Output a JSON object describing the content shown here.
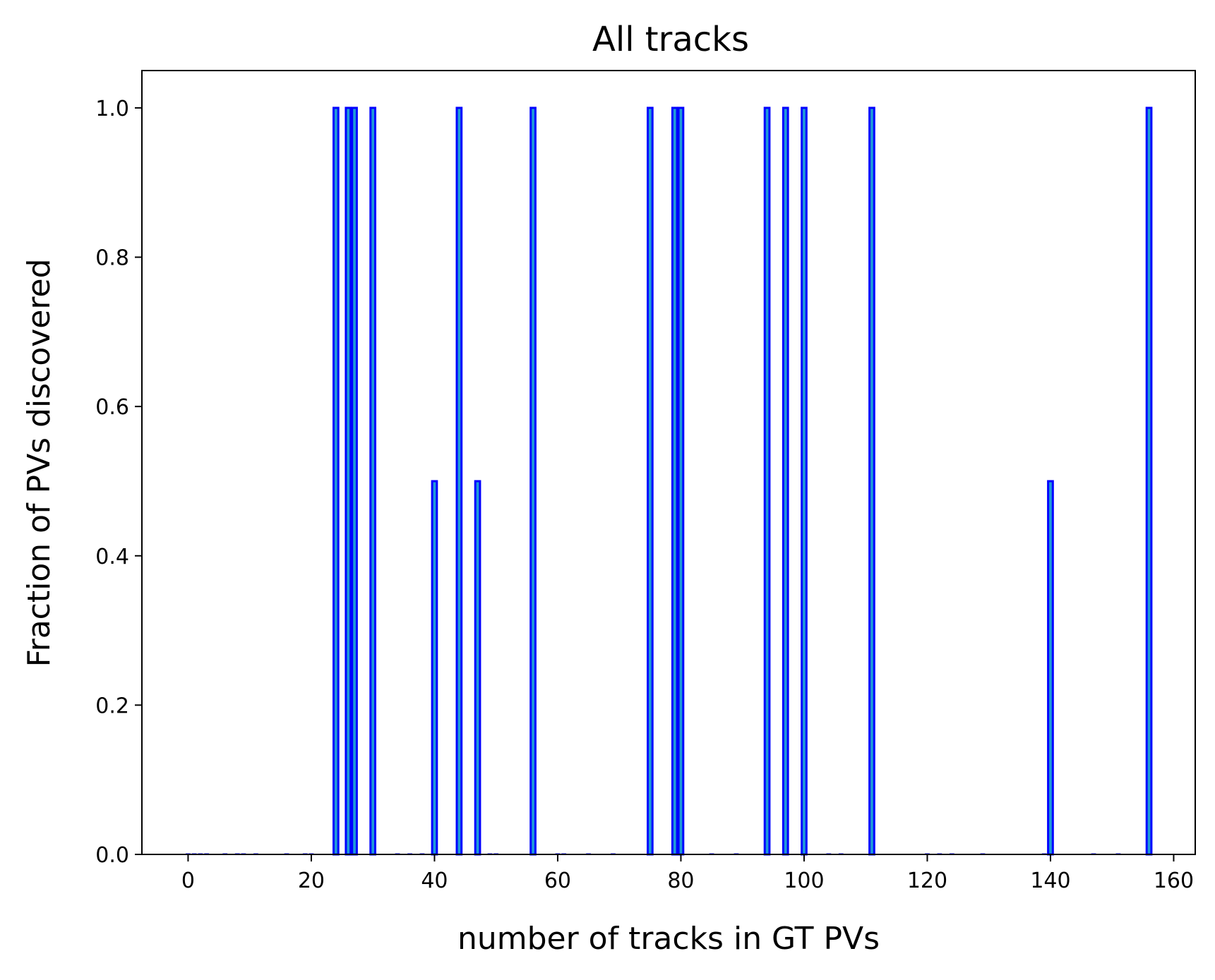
{
  "chart_data": {
    "type": "bar",
    "title": "All tracks",
    "xlabel": "number of tracks in GT PVs",
    "ylabel": "Fraction of PVs discovered",
    "xlim": [
      -7.5,
      163.5
    ],
    "ylim": [
      0.0,
      1.05
    ],
    "xticks": [
      0,
      20,
      40,
      60,
      80,
      100,
      120,
      140,
      160
    ],
    "yticks": [
      0.0,
      0.2,
      0.4,
      0.6,
      0.8,
      1.0
    ],
    "xtick_labels": [
      "0",
      "20",
      "40",
      "60",
      "80",
      "100",
      "120",
      "140",
      "160"
    ],
    "ytick_labels": [
      "0.0",
      "0.2",
      "0.4",
      "0.6",
      "0.8",
      "1.0"
    ],
    "bar_width": 1.0,
    "x": [
      0,
      1,
      2,
      3,
      6,
      8,
      9,
      11,
      16,
      19,
      20,
      24,
      26,
      27,
      30,
      34,
      36,
      38,
      40,
      44,
      47,
      49,
      50,
      56,
      60,
      61,
      65,
      69,
      75,
      79,
      80,
      85,
      89,
      94,
      97,
      100,
      104,
      106,
      111,
      120,
      122,
      124,
      129,
      139,
      140,
      147,
      151,
      156
    ],
    "values": [
      0,
      0,
      0,
      0,
      0,
      0,
      0,
      0,
      0,
      0,
      0,
      1.0,
      1.0,
      1.0,
      1.0,
      0,
      0,
      0,
      0.5,
      1.0,
      0.5,
      0,
      0,
      1.0,
      0,
      0,
      0,
      0,
      1.0,
      1.0,
      1.0,
      0,
      0,
      1.0,
      1.0,
      1.0,
      0,
      0,
      1.0,
      0,
      0,
      0,
      0,
      0,
      0.5,
      0,
      0,
      1.0
    ],
    "colors": {
      "fill": "#1f9bd8",
      "edge": "#0000ff"
    },
    "grid": false,
    "legend": "none"
  }
}
